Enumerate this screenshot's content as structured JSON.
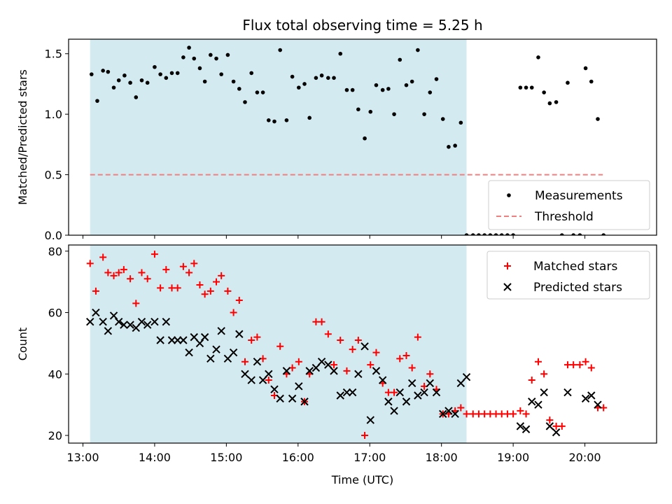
{
  "figure": {
    "title": "Flux total observing time = 5.25 h"
  },
  "chart_data": [
    {
      "type": "scatter",
      "ylabel": "Matched/Predicted stars",
      "xlim": [
        12.8,
        21.0
      ],
      "ylim": [
        0.0,
        1.62
      ],
      "yticks": [
        0.0,
        0.5,
        1.0,
        1.5
      ],
      "ytick_labels": [
        "0.0",
        "0.5",
        "1.0",
        "1.5"
      ],
      "shaded_span": [
        13.1,
        18.35
      ],
      "shade_color": "#d3eaf0",
      "legend_position": "lower right",
      "series": [
        {
          "name": "Measurements",
          "marker": "dot",
          "color": "#000000",
          "x": [
            13.12,
            13.2,
            13.28,
            13.35,
            13.43,
            13.5,
            13.58,
            13.66,
            13.74,
            13.82,
            13.9,
            14.0,
            14.08,
            14.16,
            14.24,
            14.32,
            14.4,
            14.48,
            14.55,
            14.63,
            14.7,
            14.78,
            14.86,
            14.93,
            15.02,
            15.1,
            15.18,
            15.26,
            15.35,
            15.43,
            15.51,
            15.59,
            15.67,
            15.75,
            15.84,
            15.92,
            16.01,
            16.09,
            16.16,
            16.25,
            16.33,
            16.42,
            16.5,
            16.59,
            16.68,
            16.76,
            16.84,
            16.93,
            17.01,
            17.09,
            17.18,
            17.26,
            17.34,
            17.42,
            17.51,
            17.59,
            17.67,
            17.76,
            17.84,
            17.93,
            18.02,
            18.1,
            18.19,
            18.27,
            18.35,
            18.44,
            18.52,
            18.6,
            18.68,
            18.76,
            18.84,
            18.92,
            19.0,
            19.1,
            19.18,
            19.26,
            19.35,
            19.43,
            19.51,
            19.6,
            19.68,
            19.76,
            19.84,
            19.93,
            20.01,
            20.09,
            20.18,
            20.26
          ],
          "y": [
            1.33,
            1.11,
            1.36,
            1.35,
            1.22,
            1.28,
            1.32,
            1.26,
            1.14,
            1.28,
            1.26,
            1.39,
            1.33,
            1.3,
            1.34,
            1.34,
            1.47,
            1.55,
            1.46,
            1.38,
            1.27,
            1.49,
            1.46,
            1.33,
            1.49,
            1.27,
            1.21,
            1.1,
            1.34,
            1.18,
            1.18,
            0.95,
            0.94,
            1.53,
            0.95,
            1.31,
            1.22,
            1.25,
            0.97,
            1.3,
            1.32,
            1.3,
            1.3,
            1.5,
            1.2,
            1.2,
            1.04,
            0.8,
            1.02,
            1.24,
            1.2,
            1.21,
            1.0,
            1.45,
            1.24,
            1.27,
            1.53,
            1.0,
            1.18,
            1.29,
            0.96,
            0.73,
            0.74,
            0.93,
            0.0,
            0.0,
            0.0,
            0.0,
            0.0,
            0.0,
            0.0,
            0.0,
            0.0,
            1.22,
            1.22,
            1.22,
            1.47,
            1.18,
            1.09,
            1.1,
            0.0,
            1.26,
            0.0,
            0.0,
            1.38,
            1.27,
            0.96,
            0.0
          ]
        },
        {
          "name": "Threshold",
          "style": "dashed",
          "color": "#f08080",
          "x": [
            13.1,
            20.25
          ],
          "y": [
            0.5,
            0.5
          ]
        }
      ]
    },
    {
      "type": "scatter",
      "ylabel": "Count",
      "xlabel": "Time (UTC)",
      "xlim": [
        12.8,
        21.0
      ],
      "ylim": [
        17.5,
        82
      ],
      "xticks": [
        13,
        14,
        15,
        16,
        17,
        18,
        19,
        20
      ],
      "xtick_labels": [
        "13:00",
        "14:00",
        "15:00",
        "16:00",
        "17:00",
        "18:00",
        "19:00",
        "20:00"
      ],
      "yticks": [
        20,
        40,
        60,
        80
      ],
      "ytick_labels": [
        "20",
        "40",
        "60",
        "80"
      ],
      "shaded_span": [
        13.1,
        18.35
      ],
      "shade_color": "#d3eaf0",
      "legend_position": "upper right",
      "series": [
        {
          "name": "Matched stars",
          "marker": "plus",
          "color": "#ff0000",
          "x": [
            13.1,
            13.18,
            13.28,
            13.35,
            13.43,
            13.5,
            13.57,
            13.66,
            13.74,
            13.82,
            13.9,
            14.0,
            14.08,
            14.16,
            14.24,
            14.32,
            14.4,
            14.48,
            14.55,
            14.63,
            14.7,
            14.78,
            14.86,
            14.93,
            15.02,
            15.1,
            15.18,
            15.26,
            15.35,
            15.43,
            15.51,
            15.59,
            15.67,
            15.75,
            15.84,
            15.92,
            16.01,
            16.09,
            16.16,
            16.25,
            16.33,
            16.42,
            16.5,
            16.59,
            16.68,
            16.76,
            16.84,
            16.93,
            17.01,
            17.09,
            17.18,
            17.26,
            17.34,
            17.42,
            17.51,
            17.59,
            17.67,
            17.76,
            17.84,
            17.93,
            18.02,
            18.1,
            18.19,
            18.27,
            18.35,
            18.44,
            18.52,
            18.6,
            18.68,
            18.76,
            18.84,
            18.92,
            19.0,
            19.1,
            19.18,
            19.26,
            19.35,
            19.43,
            19.51,
            19.6,
            19.68,
            19.76,
            19.84,
            19.93,
            20.01,
            20.09,
            20.18,
            20.26
          ],
          "y": [
            76,
            67,
            78,
            73,
            72,
            73,
            74,
            71,
            63,
            73,
            71,
            79,
            68,
            74,
            68,
            68,
            75,
            73,
            76,
            69,
            66,
            67,
            70,
            72,
            67,
            60,
            64,
            44,
            51,
            52,
            45,
            38,
            33,
            49,
            40,
            42,
            44,
            31,
            40,
            57,
            57,
            53,
            43,
            51,
            41,
            48,
            51,
            20,
            43,
            47,
            37,
            34,
            34,
            45,
            46,
            42,
            52,
            36,
            40,
            35,
            27,
            27,
            28,
            29,
            27,
            27,
            27,
            27,
            27,
            27,
            27,
            27,
            27,
            28,
            27,
            38,
            44,
            40,
            25,
            23,
            23,
            43,
            43,
            43,
            44,
            42,
            29,
            29
          ]
        },
        {
          "name": "Predicted stars",
          "marker": "x",
          "color": "#000000",
          "x": [
            13.1,
            13.18,
            13.28,
            13.35,
            13.43,
            13.5,
            13.57,
            13.66,
            13.74,
            13.82,
            13.9,
            14.0,
            14.08,
            14.16,
            14.24,
            14.32,
            14.4,
            14.48,
            14.55,
            14.63,
            14.7,
            14.78,
            14.86,
            14.93,
            15.02,
            15.1,
            15.18,
            15.26,
            15.35,
            15.43,
            15.51,
            15.59,
            15.67,
            15.75,
            15.84,
            15.92,
            16.01,
            16.09,
            16.16,
            16.25,
            16.33,
            16.42,
            16.5,
            16.59,
            16.68,
            16.76,
            16.84,
            16.93,
            17.01,
            17.09,
            17.18,
            17.26,
            17.34,
            17.42,
            17.51,
            17.59,
            17.67,
            17.76,
            17.84,
            17.93,
            18.02,
            18.1,
            18.19,
            18.27,
            18.35,
            19.1,
            19.18,
            19.26,
            19.35,
            19.43,
            19.51,
            19.6,
            19.76,
            20.01,
            20.09,
            20.18
          ],
          "y": [
            57,
            60,
            57,
            54,
            59,
            57,
            56,
            56,
            55,
            57,
            56,
            57,
            51,
            57,
            51,
            51,
            51,
            47,
            52,
            50,
            52,
            45,
            48,
            54,
            45,
            47,
            53,
            40,
            38,
            44,
            38,
            40,
            35,
            32,
            41,
            32,
            36,
            31,
            41,
            42,
            44,
            43,
            41,
            33,
            34,
            34,
            40,
            49,
            25,
            41,
            38,
            31,
            28,
            34,
            31,
            37,
            33,
            34,
            37,
            34,
            27,
            28,
            27,
            37,
            39,
            23,
            22,
            31,
            30,
            34,
            23,
            21,
            34,
            32,
            33,
            30
          ]
        }
      ]
    }
  ]
}
